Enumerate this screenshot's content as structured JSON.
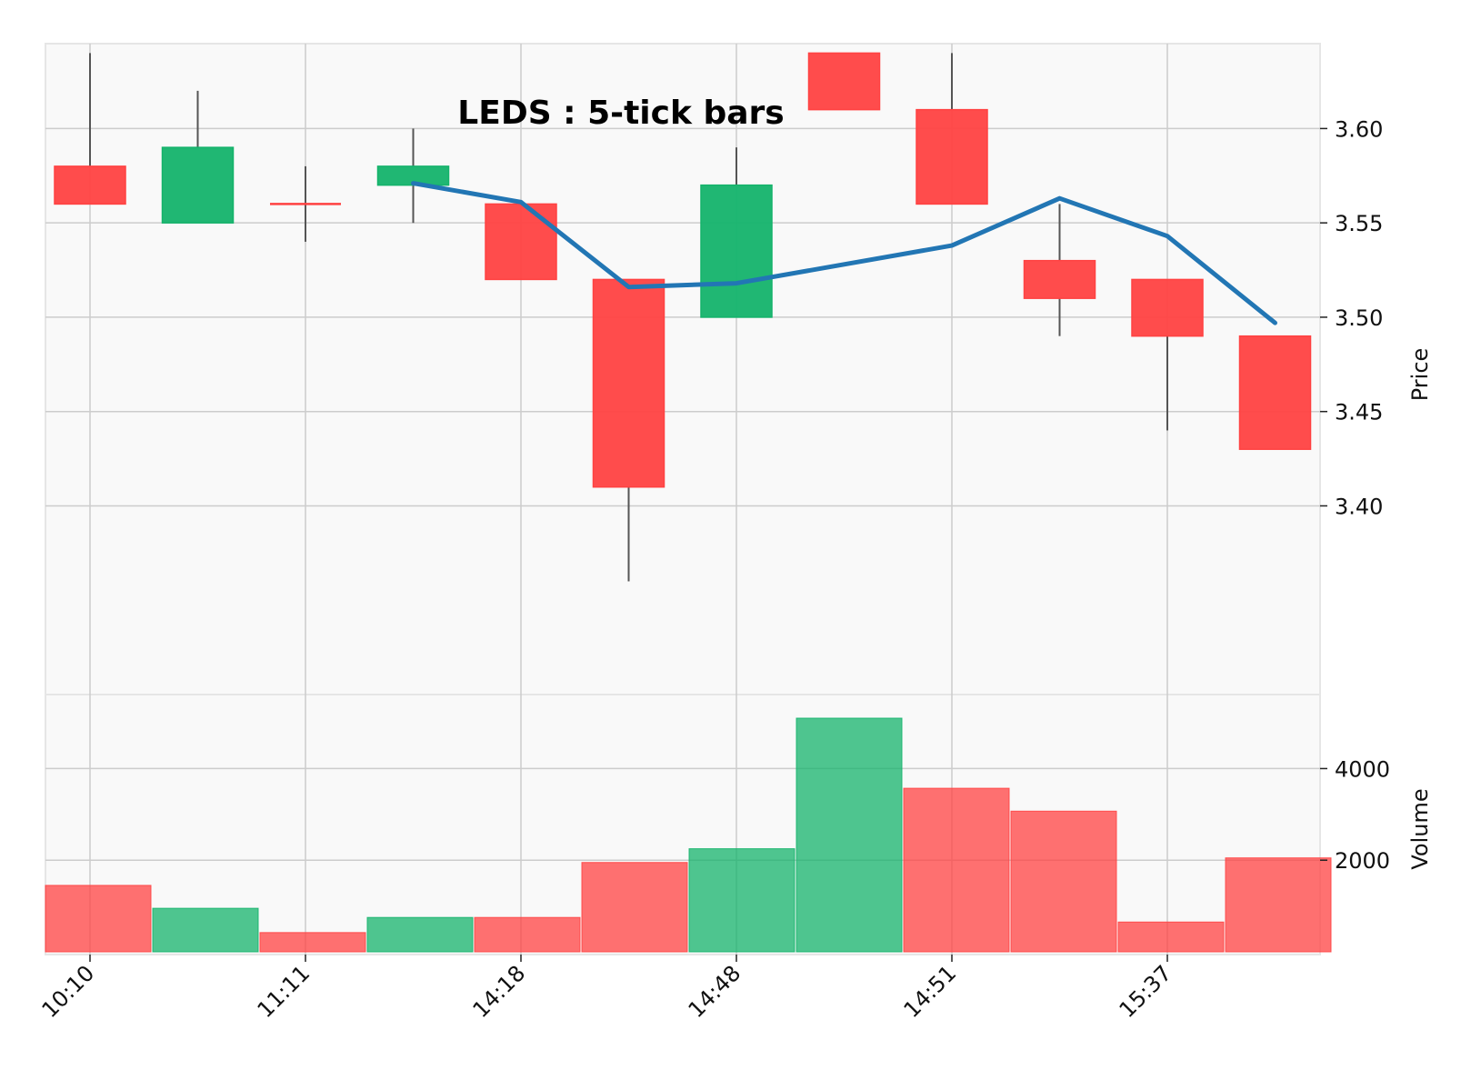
{
  "chart_data": {
    "type": "candlestick",
    "title": "LEDS : 5-tick bars",
    "ylabel": "Price",
    "volume_label": "Volume",
    "ylim": [
      3.3,
      3.645
    ],
    "volume_ylim": [
      0,
      5100
    ],
    "x_tick_labels": [
      "10:10",
      "11:11",
      "14:18",
      "14:48",
      "14:51",
      "15:37"
    ],
    "x_tick_indices": [
      0,
      2,
      4,
      6,
      8,
      10
    ],
    "y_ticks": [
      "3.40",
      "3.45",
      "3.50",
      "3.55",
      "3.60"
    ],
    "volume_ticks": [
      "2000",
      "4000"
    ],
    "grid": true,
    "colors": {
      "up": "#14b36b",
      "down": "#ff4242",
      "line": "#2276b4",
      "wick": "#555555",
      "background": "#f9f9f9",
      "grid": "#cccccc"
    },
    "bars": [
      {
        "open": 3.58,
        "high": 3.64,
        "low": 3.56,
        "close": 3.56,
        "volume": 1450
      },
      {
        "open": 3.55,
        "high": 3.62,
        "low": 3.55,
        "close": 3.59,
        "volume": 950
      },
      {
        "open": 3.56,
        "high": 3.58,
        "low": 3.54,
        "close": 3.56,
        "volume": 420
      },
      {
        "open": 3.57,
        "high": 3.6,
        "low": 3.55,
        "close": 3.58,
        "volume": 750
      },
      {
        "open": 3.56,
        "high": 3.56,
        "low": 3.52,
        "close": 3.52,
        "volume": 750
      },
      {
        "open": 3.52,
        "high": 3.52,
        "low": 3.36,
        "close": 3.41,
        "volume": 1950
      },
      {
        "open": 3.5,
        "high": 3.59,
        "low": 3.5,
        "close": 3.57,
        "volume": 2250
      },
      {
        "open": 3.64,
        "high": 3.64,
        "low": 3.61,
        "close": 3.61,
        "volume": 5100
      },
      {
        "open": 3.61,
        "high": 3.64,
        "low": 3.56,
        "close": 3.56,
        "volume": 3570
      },
      {
        "open": 3.53,
        "high": 3.56,
        "low": 3.49,
        "close": 3.51,
        "volume": 3070
      },
      {
        "open": 3.52,
        "high": 3.52,
        "low": 3.44,
        "close": 3.49,
        "volume": 650
      },
      {
        "open": 3.49,
        "high": 3.49,
        "low": 3.43,
        "close": 3.43,
        "volume": 2050
      }
    ],
    "volume_colors": [
      "down",
      "up",
      "down",
      "up",
      "down",
      "down",
      "up",
      "up",
      "down",
      "down",
      "down",
      "down"
    ],
    "moving_average": [
      {
        "index": 3,
        "value": 3.571
      },
      {
        "index": 4,
        "value": 3.561
      },
      {
        "index": 5,
        "value": 3.516
      },
      {
        "index": 6,
        "value": 3.518
      },
      {
        "index": 7,
        "value": 3.528
      },
      {
        "index": 8,
        "value": 3.538
      },
      {
        "index": 9,
        "value": 3.563
      },
      {
        "index": 10,
        "value": 3.543
      },
      {
        "index": 11,
        "value": 3.497
      }
    ]
  }
}
